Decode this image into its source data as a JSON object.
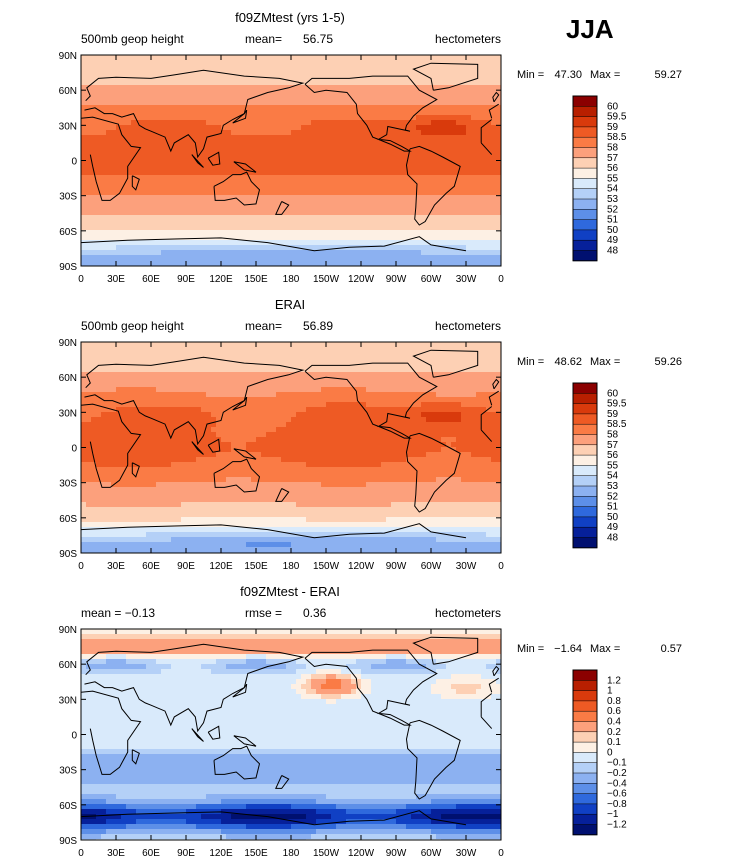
{
  "season": "JJA",
  "x_ticks": [
    "0",
    "30E",
    "60E",
    "90E",
    "120E",
    "150E",
    "180",
    "150W",
    "120W",
    "90W",
    "60W",
    "30W",
    "0"
  ],
  "y_ticks": [
    "90N",
    "60N",
    "30N",
    "0",
    "30S",
    "60S",
    "90S"
  ],
  "panels": [
    {
      "title": "f09ZMtest (yrs 1-5)",
      "left_text": "500mb geop height",
      "center_label": "mean=",
      "center_value": "56.75",
      "right_text": "hectometers",
      "min_label": "Min =",
      "min_value": "47.30",
      "max_label": "Max =",
      "max_value": "59.27",
      "colorbar_labels": [
        "60",
        "59.5",
        "59",
        "58.5",
        "58",
        "57",
        "56",
        "55",
        "54",
        "53",
        "52",
        "51",
        "50",
        "49",
        "48"
      ]
    },
    {
      "title": "ERAI",
      "left_text": "500mb geop height",
      "center_label": "mean=",
      "center_value": "56.89",
      "right_text": "hectometers",
      "min_label": "Min =",
      "min_value": "48.62",
      "max_label": "Max =",
      "max_value": "59.26",
      "colorbar_labels": [
        "60",
        "59.5",
        "59",
        "58.5",
        "58",
        "57",
        "56",
        "55",
        "54",
        "53",
        "52",
        "51",
        "50",
        "49",
        "48"
      ]
    },
    {
      "title": "f09ZMtest - ERAI",
      "left_text": "mean =  −0.13",
      "center_label": "rmse =",
      "center_value": "0.36",
      "right_text": "hectometers",
      "min_label": "Min =",
      "min_value": "−1.64",
      "max_label": "Max =",
      "max_value": "0.57",
      "colorbar_labels": [
        "1.2",
        "1",
        "0.8",
        "0.6",
        "0.4",
        "0.2",
        "0.1",
        "0",
        "−0.1",
        "−0.2",
        "−0.4",
        "−0.6",
        "−0.8",
        "−1",
        "−1.2"
      ]
    }
  ],
  "colors": {
    "abs_scale": [
      "#8b0000",
      "#b81f00",
      "#d93a0c",
      "#ee5a24",
      "#fa7b45",
      "#fca07c",
      "#fdd0b4",
      "#fdf0e4",
      "#d9eafb",
      "#b4d0f7",
      "#8cb1f1",
      "#5d8fe8",
      "#2f69dd",
      "#1040c4",
      "#06209a",
      "#001070"
    ],
    "diff_scale": [
      "#8b0000",
      "#b81f00",
      "#d93a0c",
      "#ee5a24",
      "#fa7b45",
      "#fca07c",
      "#fdd0b4",
      "#fdf0e4",
      "#d9eafb",
      "#b4d0f7",
      "#8cb1f1",
      "#5d8fe8",
      "#2f69dd",
      "#1040c4",
      "#06209a",
      "#001070"
    ]
  }
}
